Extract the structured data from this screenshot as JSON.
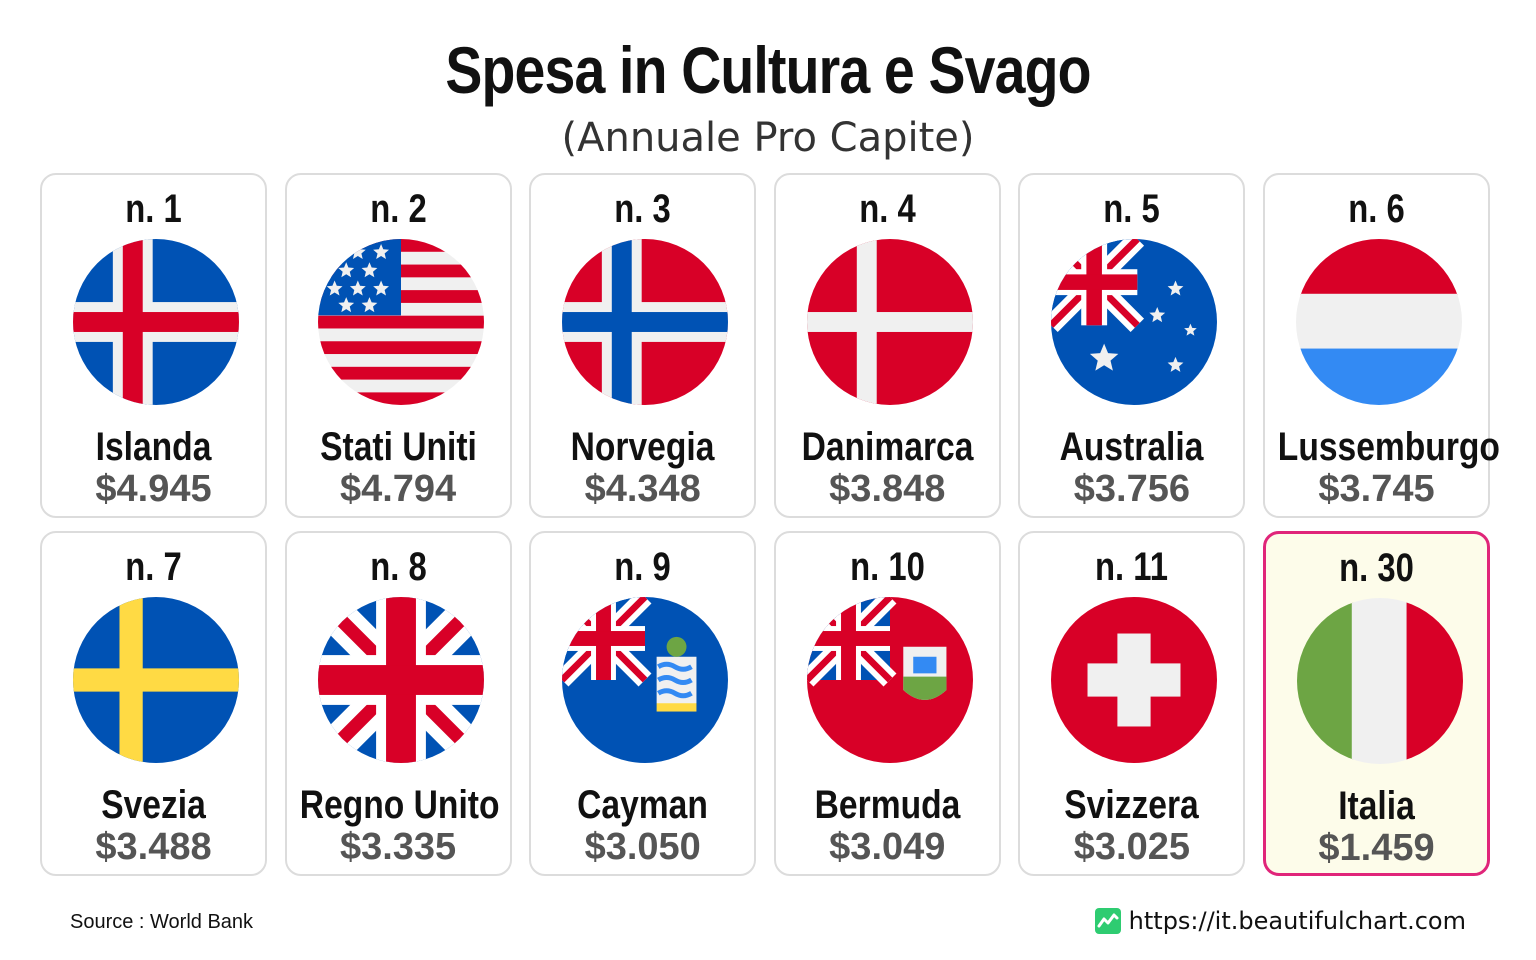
{
  "title": "Spesa in Cultura e Svago",
  "subtitle": "(Annuale Pro Capite)",
  "source": "Source : World Bank",
  "brand_url": "https://it.beautifulchart.com",
  "colors": {
    "highlight_border": "#e0257a",
    "highlight_bg": "#fdfcea",
    "value_text": "#555555",
    "brand_green": "#2ecc71"
  },
  "cards": [
    {
      "rank_label": "n. 1",
      "country": "Islanda",
      "value_label": "$4.945",
      "flag": "iceland-flag-icon"
    },
    {
      "rank_label": "n. 2",
      "country": "Stati Uniti",
      "value_label": "$4.794",
      "flag": "usa-flag-icon"
    },
    {
      "rank_label": "n. 3",
      "country": "Norvegia",
      "value_label": "$4.348",
      "flag": "norway-flag-icon"
    },
    {
      "rank_label": "n. 4",
      "country": "Danimarca",
      "value_label": "$3.848",
      "flag": "denmark-flag-icon"
    },
    {
      "rank_label": "n. 5",
      "country": "Australia",
      "value_label": "$3.756",
      "flag": "australia-flag-icon"
    },
    {
      "rank_label": "n. 6",
      "country": "Lussemburgo",
      "value_label": "$3.745",
      "flag": "luxembourg-flag-icon"
    },
    {
      "rank_label": "n. 7",
      "country": "Svezia",
      "value_label": "$3.488",
      "flag": "sweden-flag-icon"
    },
    {
      "rank_label": "n. 8",
      "country": "Regno Unito",
      "value_label": "$3.335",
      "flag": "uk-flag-icon"
    },
    {
      "rank_label": "n. 9",
      "country": "Cayman",
      "value_label": "$3.050",
      "flag": "cayman-flag-icon"
    },
    {
      "rank_label": "n. 10",
      "country": "Bermuda",
      "value_label": "$3.049",
      "flag": "bermuda-flag-icon"
    },
    {
      "rank_label": "n. 11",
      "country": "Svizzera",
      "value_label": "$3.025",
      "flag": "switzerland-flag-icon"
    },
    {
      "rank_label": "n. 30",
      "country": "Italia",
      "value_label": "$1.459",
      "flag": "italy-flag-icon",
      "highlight": true
    }
  ],
  "chart_data": {
    "type": "table",
    "title": "Spesa in Cultura e Svago",
    "subtitle": "(Annuale Pro Capite)",
    "columns": [
      "rank",
      "country",
      "value"
    ],
    "rows": [
      {
        "rank": 1,
        "country": "Islanda",
        "value": 4945
      },
      {
        "rank": 2,
        "country": "Stati Uniti",
        "value": 4794
      },
      {
        "rank": 3,
        "country": "Norvegia",
        "value": 4348
      },
      {
        "rank": 4,
        "country": "Danimarca",
        "value": 3848
      },
      {
        "rank": 5,
        "country": "Australia",
        "value": 3756
      },
      {
        "rank": 6,
        "country": "Lussemburgo",
        "value": 3745
      },
      {
        "rank": 7,
        "country": "Svezia",
        "value": 3488
      },
      {
        "rank": 8,
        "country": "Regno Unito",
        "value": 3335
      },
      {
        "rank": 9,
        "country": "Cayman",
        "value": 3050
      },
      {
        "rank": 10,
        "country": "Bermuda",
        "value": 3049
      },
      {
        "rank": 11,
        "country": "Svizzera",
        "value": 3025
      },
      {
        "rank": 30,
        "country": "Italia",
        "value": 1459
      }
    ]
  }
}
